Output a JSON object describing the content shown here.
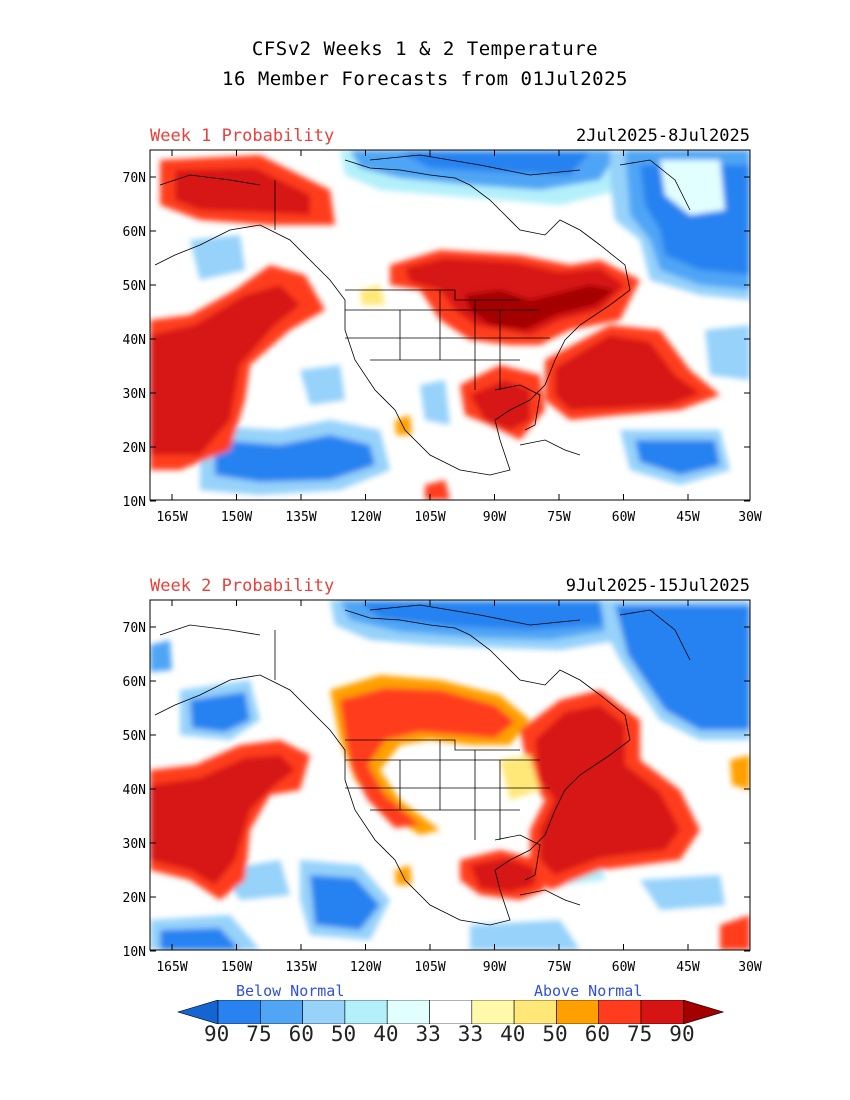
{
  "title_line1": "CFSv2 Weeks 1 & 2 Temperature",
  "title_line2": "16 Member Forecasts from 01Jul2025",
  "panels": [
    {
      "label": "Week 1 Probability",
      "dates": "2Jul2025-8Jul2025"
    },
    {
      "label": "Week 2 Probability",
      "dates": "9Jul2025-15Jul2025"
    }
  ],
  "lat_ticks": [
    "70N",
    "60N",
    "50N",
    "40N",
    "30N",
    "20N",
    "10N"
  ],
  "lon_ticks": [
    "165W",
    "150W",
    "135W",
    "120W",
    "105W",
    "90W",
    "75W",
    "60W",
    "45W",
    "30W"
  ],
  "legend": {
    "below_label": "Below Normal",
    "above_label": "Above Normal",
    "values": [
      "90",
      "75",
      "60",
      "50",
      "40",
      "33",
      "33",
      "40",
      "50",
      "60",
      "75",
      "90"
    ],
    "colors": [
      "#1464d2",
      "#2882f0",
      "#50a5f5",
      "#96d2fa",
      "#b4f0fa",
      "#e1ffff",
      "#ffffff",
      "#fffaaa",
      "#ffe878",
      "#ffa000",
      "#ff3c1e",
      "#d71414",
      "#a50000"
    ]
  }
}
